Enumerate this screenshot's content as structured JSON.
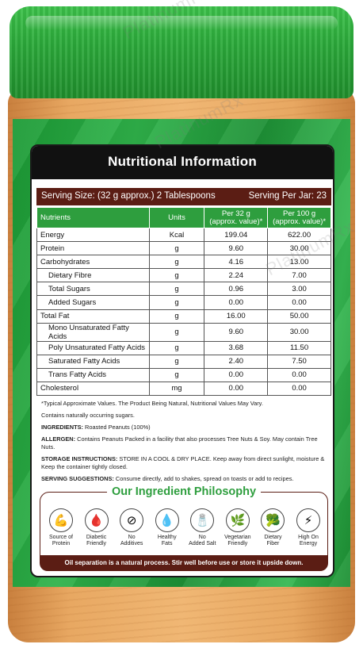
{
  "watermark": "PlatinumRx",
  "label": {
    "title": "Nutritional Information",
    "serving_size": "Serving Size: (32 g approx.) 2 Tablespoons",
    "serving_per_jar": "Serving Per Jar: 23",
    "table": {
      "headers": [
        "Nutrients",
        "Units",
        "Per 32 g\n(approx. value)*",
        "Per 100 g\n(approx. value)*"
      ],
      "rows": [
        {
          "name": "Energy",
          "unit": "Kcal",
          "per32": "199.04",
          "per100": "622.00",
          "indent": false
        },
        {
          "name": "Protein",
          "unit": "g",
          "per32": "9.60",
          "per100": "30.00",
          "indent": false
        },
        {
          "name": "Carbohydrates",
          "unit": "g",
          "per32": "4.16",
          "per100": "13.00",
          "indent": false
        },
        {
          "name": "Dietary Fibre",
          "unit": "g",
          "per32": "2.24",
          "per100": "7.00",
          "indent": true
        },
        {
          "name": "Total Sugars",
          "unit": "g",
          "per32": "0.96",
          "per100": "3.00",
          "indent": true
        },
        {
          "name": "Added Sugars",
          "unit": "g",
          "per32": "0.00",
          "per100": "0.00",
          "indent": true
        },
        {
          "name": "Total Fat",
          "unit": "g",
          "per32": "16.00",
          "per100": "50.00",
          "indent": false
        },
        {
          "name": "Mono Unsaturated Fatty Acids",
          "unit": "g",
          "per32": "9.60",
          "per100": "30.00",
          "indent": true
        },
        {
          "name": "Poly Unsaturated Fatty Acids",
          "unit": "g",
          "per32": "3.68",
          "per100": "11.50",
          "indent": true
        },
        {
          "name": "Saturated Fatty Acids",
          "unit": "g",
          "per32": "2.40",
          "per100": "7.50",
          "indent": true
        },
        {
          "name": "Trans Fatty Acids",
          "unit": "g",
          "per32": "0.00",
          "per100": "0.00",
          "indent": true
        },
        {
          "name": "Cholesterol",
          "unit": "mg",
          "per32": "0.00",
          "per100": "0.00",
          "indent": false
        }
      ]
    },
    "notes": {
      "typical": "*Typical Approximate Values. The Product Being Natural, Nutritional Values May Vary.",
      "sugars": "Contains naturally occurring sugars.",
      "ingredients_label": "INGREDIENTS:",
      "ingredients": " Roasted Peanuts (100%)",
      "allergen_label": "ALLERGEN:",
      "allergen": " Contains Peanuts Packed in a facility that also processes Tree Nuts & Soy. May contain Tree Nuts.",
      "storage_label": "STORAGE INSTRUCTIONS:",
      "storage": " STORE IN A COOL & DRY PLACE. Keep away from direct sunlight, moisture & Keep the container tightly closed.",
      "serving_label": "SERVING SUGGESTIONS:",
      "serving": " Consume directly, add to shakes, spread on toasts or add to recipes."
    },
    "philosophy": {
      "title": "Our Ingredient Philosophy",
      "items": [
        {
          "icon": "muscle-icon",
          "glyph": "💪",
          "label": "Source of\nProtein"
        },
        {
          "icon": "glucose-meter-icon",
          "glyph": "🩸",
          "label": "Diabetic\nFriendly"
        },
        {
          "icon": "no-additives-icon",
          "glyph": "⊘",
          "label": "No\nAdditives"
        },
        {
          "icon": "healthy-fats-icon",
          "glyph": "💧",
          "label": "Healthy\nFats"
        },
        {
          "icon": "no-salt-icon",
          "glyph": "🧂",
          "label": "No\nAdded Salt"
        },
        {
          "icon": "vegetarian-icon",
          "glyph": "🌿",
          "label": "Vegetarian\nFriendly"
        },
        {
          "icon": "dietary-fiber-icon",
          "glyph": "🥦",
          "label": "Dietary\nFiber"
        },
        {
          "icon": "energy-icon",
          "glyph": "⚡",
          "label": "High On\nEnergy"
        }
      ]
    },
    "footer": "Oil separation is a natural process. Stir well before use or store it upside down."
  }
}
